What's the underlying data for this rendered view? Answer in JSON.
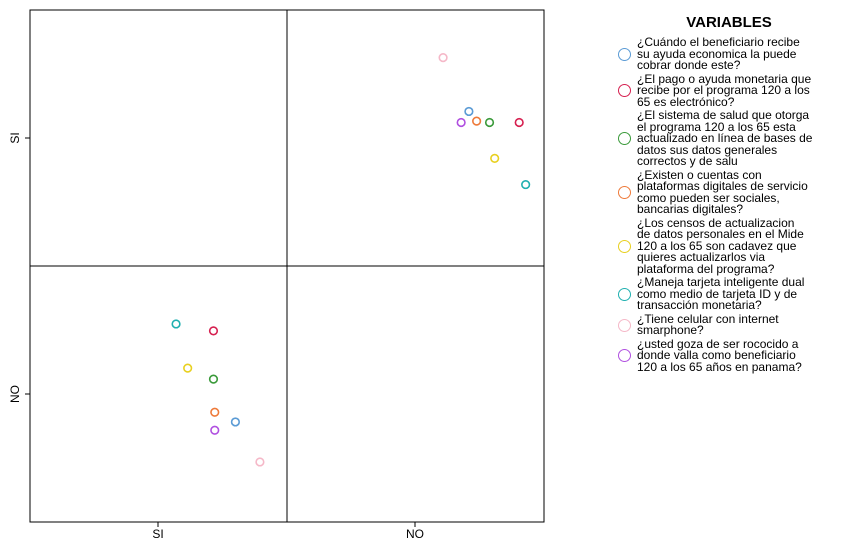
{
  "chart_data": {
    "type": "scatter",
    "title": "",
    "xlabel": "",
    "ylabel": "",
    "x_categories": [
      "SI",
      "NO"
    ],
    "y_categories": [
      "SI",
      "NO"
    ],
    "legend_title": "VARIABLES",
    "legend_position": "right",
    "grid": false,
    "series": [
      {
        "name": "¿Cuándo el beneficiario recibe\nsu ayuda economica la puede\ncobrar donde este?",
        "color": "#5b9bd5",
        "points": [
          {
            "x": 1.41,
            "y": 1.12
          },
          {
            "x": -0.4,
            "y": -1.13
          }
        ]
      },
      {
        "name": "¿El pago o ayuda monetaria que\nrecibe por el programa 120 a los\n65 es electrónico?",
        "color": "#d62050",
        "points": [
          {
            "x": 1.8,
            "y": 1.04
          },
          {
            "x": -0.57,
            "y": -0.47
          }
        ]
      },
      {
        "name": "¿El sistema de salud que otorga\nel programa 120 a los 65 esta\nactualizado en línea de bases de\ndatos sus datos generales\ncorrectos y de salu",
        "color": "#3a9a3a",
        "points": [
          {
            "x": 1.57,
            "y": 1.04
          },
          {
            "x": -0.57,
            "y": -0.82
          }
        ]
      },
      {
        "name": "¿Existen o cuentas con\nplataformas digitales de servicio\ncomo pueden ser sociales,\nbancarias digitales?",
        "color": "#ee7a3a",
        "points": [
          {
            "x": 1.47,
            "y": 1.05
          },
          {
            "x": -0.56,
            "y": -1.06
          }
        ]
      },
      {
        "name": "¿Los censos de actualizacion\nde datos personales en el Mide\n120 a los 65 son cadavez que\nquieres actualizarlos via\nplataforma del programa?",
        "color": "#e8d020",
        "points": [
          {
            "x": 1.61,
            "y": 0.78
          },
          {
            "x": -0.77,
            "y": -0.74
          }
        ]
      },
      {
        "name": "¿Maneja tarjeta inteligente dual\ncomo medio de tarjeta ID y de\ntransacción monetaria?",
        "color": "#20b0b0",
        "points": [
          {
            "x": 1.85,
            "y": 0.59
          },
          {
            "x": -0.86,
            "y": -0.42
          }
        ]
      },
      {
        "name": "¿Tiene celular con internet\nsmarphone?",
        "color": "#f5b8c8",
        "points": [
          {
            "x": 1.21,
            "y": 1.51
          },
          {
            "x": -0.21,
            "y": -1.42
          }
        ]
      },
      {
        "name": "¿usted goza de ser rococido a\ndonde valla como beneficiario\n120 a los 65 años en panama?",
        "color": "#b050e0",
        "points": [
          {
            "x": 1.35,
            "y": 1.04
          },
          {
            "x": -0.56,
            "y": -1.19
          }
        ]
      }
    ]
  }
}
